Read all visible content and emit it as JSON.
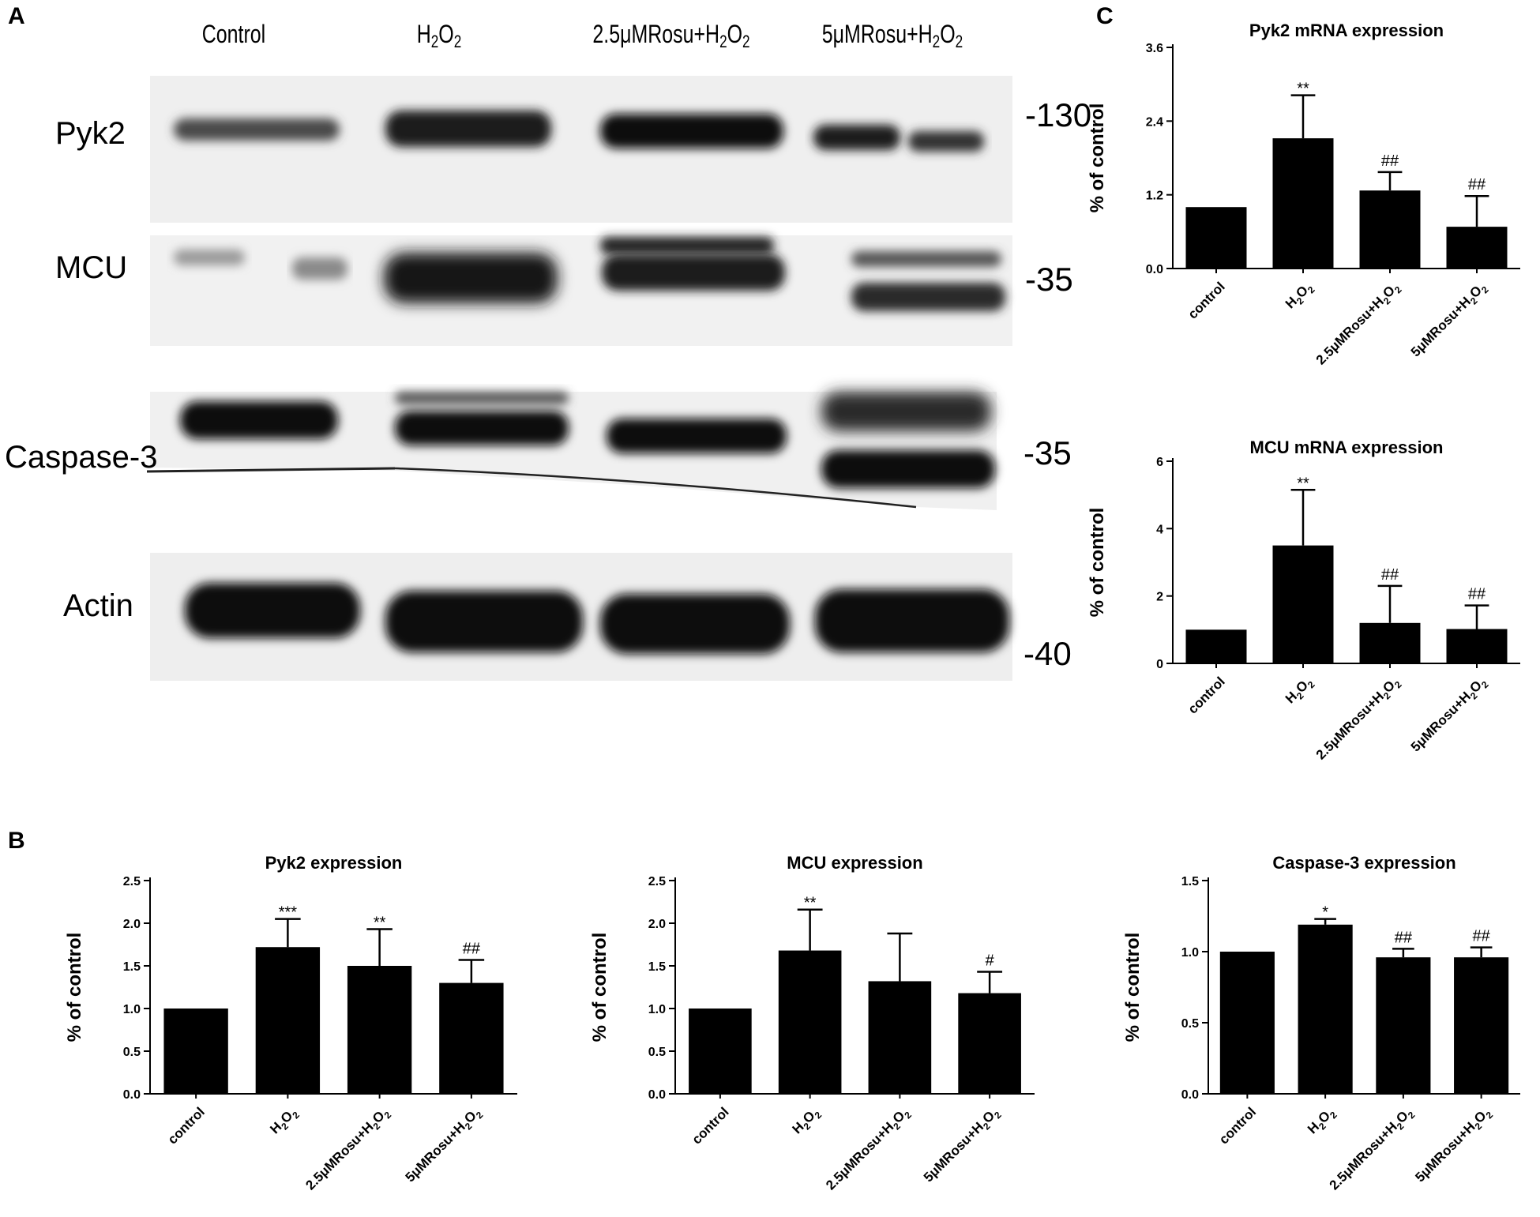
{
  "panels": {
    "a": "A",
    "b": "B",
    "c": "C"
  },
  "blot": {
    "lanes": [
      {
        "plain": "Control"
      },
      {
        "plain": "H",
        "s1": "2",
        "m": "O",
        "s2": "2"
      },
      {
        "plain": "2.5μMRosu+H",
        "s1": "2",
        "m": "O",
        "s2": "2"
      },
      {
        "plain": "5μMRosu+H",
        "s1": "2",
        "m": "O",
        "s2": "2"
      }
    ],
    "bands": [
      {
        "label": "Pyk2",
        "marker": "-130"
      },
      {
        "label": "MCU",
        "marker": "-35"
      },
      {
        "label": "Caspase-3",
        "marker": "-35"
      },
      {
        "label": "Actin",
        "marker": "-40"
      }
    ]
  },
  "chart_data": [
    {
      "type": "bar",
      "title": "Pyk2 mRNA expression",
      "ylabel": "% of control",
      "categories": [
        "control",
        "H2O2",
        "2.5μMRosu+H2O2",
        "5μMRosu+H2O2"
      ],
      "values": [
        1.0,
        2.12,
        1.27,
        0.68
      ],
      "errors": [
        0,
        0.7,
        0.3,
        0.5
      ],
      "annotations": [
        "",
        "**",
        "##",
        "##"
      ],
      "ylim": [
        0,
        3.6
      ],
      "yticks": [
        "0.0",
        "1.2",
        "2.4",
        "3.6"
      ]
    },
    {
      "type": "bar",
      "title": "MCU mRNA expression",
      "ylabel": "% of control",
      "categories": [
        "control",
        "H2O2",
        "2.5μMRosu+H2O2",
        "5μMRosu+H2O2"
      ],
      "values": [
        1.0,
        3.5,
        1.2,
        1.02
      ],
      "errors": [
        0,
        1.65,
        1.1,
        0.7
      ],
      "annotations": [
        "",
        "**",
        "##",
        "##"
      ],
      "ylim": [
        0,
        6
      ],
      "yticks": [
        "0",
        "2",
        "4",
        "6"
      ]
    },
    {
      "type": "bar",
      "title": "Pyk2 expression",
      "ylabel": "% of control",
      "categories": [
        "control",
        "H2O2",
        "2.5μMRosu+H2O2",
        "5μMRosu+H2O2"
      ],
      "values": [
        1.0,
        1.72,
        1.5,
        1.3
      ],
      "errors": [
        0,
        0.33,
        0.43,
        0.27
      ],
      "annotations": [
        "",
        "***",
        "**",
        "##"
      ],
      "ylim": [
        0,
        2.5
      ],
      "yticks": [
        "0.0",
        "0.5",
        "1.0",
        "1.5",
        "2.0",
        "2.5"
      ]
    },
    {
      "type": "bar",
      "title": "MCU  expression",
      "ylabel": "% of control",
      "categories": [
        "control",
        "H2O2",
        "2.5μMRosu+H2O2",
        "5μMRosu+H2O2"
      ],
      "values": [
        1.0,
        1.68,
        1.32,
        1.18
      ],
      "errors": [
        0,
        0.48,
        0.56,
        0.25
      ],
      "annotations": [
        "",
        "**",
        "",
        "#"
      ],
      "ylim": [
        0,
        2.5
      ],
      "yticks": [
        "0.0",
        "0.5",
        "1.0",
        "1.5",
        "2.0",
        "2.5"
      ]
    },
    {
      "type": "bar",
      "title": "Caspase-3 expression",
      "ylabel": "% of control",
      "categories": [
        "control",
        "H2O2",
        "2.5μMRosu+H2O2",
        "5μMRosu+H2O2"
      ],
      "values": [
        1.0,
        1.19,
        0.96,
        0.96
      ],
      "errors": [
        0,
        0.04,
        0.06,
        0.07
      ],
      "annotations": [
        "",
        "*",
        "##",
        "##"
      ],
      "ylim": [
        0,
        1.5
      ],
      "yticks": [
        "0.0",
        "0.5",
        "1.0",
        "1.5"
      ]
    }
  ]
}
